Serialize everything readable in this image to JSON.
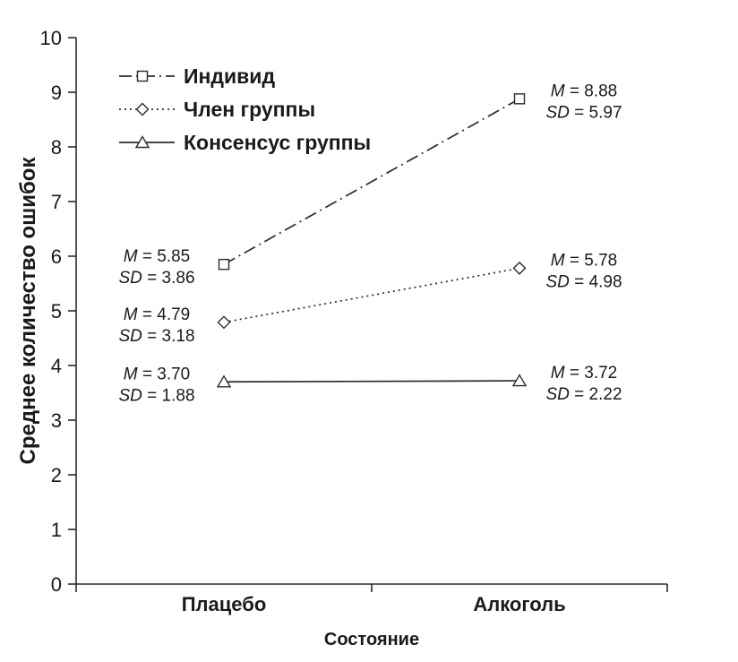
{
  "chart_data": {
    "type": "line",
    "title": "",
    "categories": [
      "Плацебо",
      "Алкоголь"
    ],
    "xlabel": "Состояние",
    "ylabel": "Среднее количество ошибок",
    "ylim": [
      0,
      10
    ],
    "ytick_step": 1,
    "grid": false,
    "legend_position": "top-left-inside",
    "series": [
      {
        "name": "Индивид",
        "values": [
          5.85,
          8.88
        ],
        "sd": [
          3.86,
          5.97
        ],
        "marker": "square",
        "line_style": "dashdot",
        "annotations": [
          {
            "lines": [
              "M = 5.85",
              "SD = 3.86"
            ],
            "side": "left"
          },
          {
            "lines": [
              "M = 8.88",
              "SD = 5.97"
            ],
            "side": "right"
          }
        ]
      },
      {
        "name": "Член группы",
        "values": [
          4.79,
          5.78
        ],
        "sd": [
          3.18,
          4.98
        ],
        "marker": "diamond",
        "line_style": "dotted",
        "annotations": [
          {
            "lines": [
              "M = 4.79",
              "SD = 3.18"
            ],
            "side": "left"
          },
          {
            "lines": [
              "M = 5.78",
              "SD = 4.98"
            ],
            "side": "right"
          }
        ]
      },
      {
        "name": "Консенсус группы",
        "values": [
          3.7,
          3.72
        ],
        "sd": [
          1.88,
          2.22
        ],
        "marker": "triangle",
        "line_style": "solid",
        "annotations": [
          {
            "lines": [
              "M = 3.70",
              "SD = 1.88"
            ],
            "side": "left"
          },
          {
            "lines": [
              "M = 3.72",
              "SD = 2.22"
            ],
            "side": "right"
          }
        ]
      }
    ],
    "colors": {
      "line": "#2b2b2b",
      "marker_fill": "#ffffff",
      "text": "#1a1a1a"
    }
  }
}
